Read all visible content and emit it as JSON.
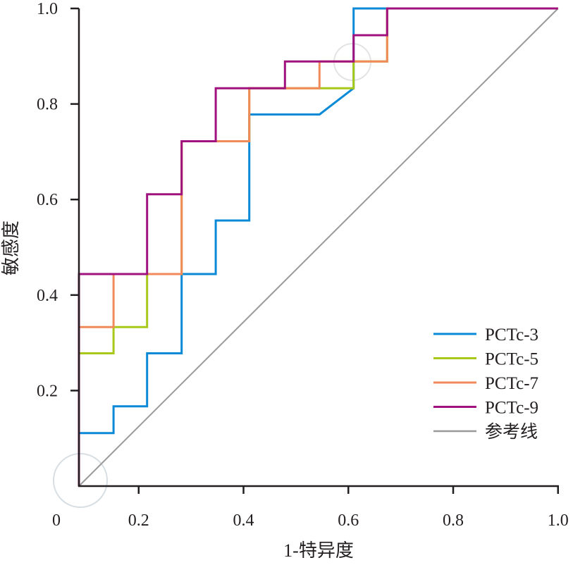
{
  "chart_data": {
    "type": "line",
    "title": "",
    "xlabel": "1-特异度",
    "ylabel": "敏感度",
    "xlim": [
      0,
      1
    ],
    "ylim": [
      0,
      1
    ],
    "xticks": [
      "0",
      "0.2",
      "0.4",
      "0.6",
      "0.8",
      "1.0"
    ],
    "xtick_values": [
      0,
      0.2,
      0.4,
      0.6,
      0.8,
      1.0
    ],
    "yticks": [
      "0.2",
      "0.4",
      "0.6",
      "0.8",
      "1.0"
    ],
    "ytick_values": [
      0.2,
      0.4,
      0.6,
      0.8,
      1.0
    ],
    "grid": false,
    "legend_position": "bottom-right",
    "series": [
      {
        "name": "PCTc-3",
        "color": "#0a8ad6",
        "x": [
          0.086,
          0.086,
          0.152,
          0.152,
          0.216,
          0.216,
          0.282,
          0.282,
          0.347,
          0.347,
          0.411,
          0.411,
          0.545,
          0.61,
          0.61,
          1.0
        ],
        "y": [
          0,
          0.111,
          0.111,
          0.167,
          0.167,
          0.278,
          0.278,
          0.444,
          0.444,
          0.556,
          0.556,
          0.778,
          0.778,
          0.833,
          1.0,
          1.0
        ]
      },
      {
        "name": "PCTc-5",
        "color": "#a8c81a",
        "x": [
          0.086,
          0.086,
          0.152,
          0.152,
          0.216,
          0.216,
          0.282,
          0.282,
          0.411,
          0.411,
          0.61,
          0.61,
          0.674,
          0.674,
          1.0
        ],
        "y": [
          0,
          0.278,
          0.278,
          0.333,
          0.333,
          0.444,
          0.444,
          0.722,
          0.722,
          0.833,
          0.833,
          0.889,
          0.889,
          1.0,
          1.0
        ]
      },
      {
        "name": "PCTc-7",
        "color": "#f08a5a",
        "x": [
          0.086,
          0.086,
          0.152,
          0.152,
          0.282,
          0.282,
          0.411,
          0.411,
          0.545,
          0.545,
          0.674,
          0.674,
          1.0
        ],
        "y": [
          0,
          0.333,
          0.333,
          0.444,
          0.444,
          0.722,
          0.722,
          0.833,
          0.833,
          0.889,
          0.889,
          1.0,
          1.0
        ]
      },
      {
        "name": "PCTc-9",
        "color": "#a0127e",
        "x": [
          0.086,
          0.086,
          0.216,
          0.216,
          0.282,
          0.282,
          0.347,
          0.347,
          0.479,
          0.479,
          0.61,
          0.61,
          0.674,
          0.674,
          1.0
        ],
        "y": [
          0,
          0.444,
          0.444,
          0.611,
          0.611,
          0.722,
          0.722,
          0.833,
          0.833,
          0.889,
          0.889,
          0.944,
          0.944,
          1.0,
          1.0
        ]
      },
      {
        "name": "参考线",
        "color": "#9a9a9a",
        "x": [
          0.086,
          1.0
        ],
        "y": [
          0,
          1.0
        ]
      }
    ]
  }
}
